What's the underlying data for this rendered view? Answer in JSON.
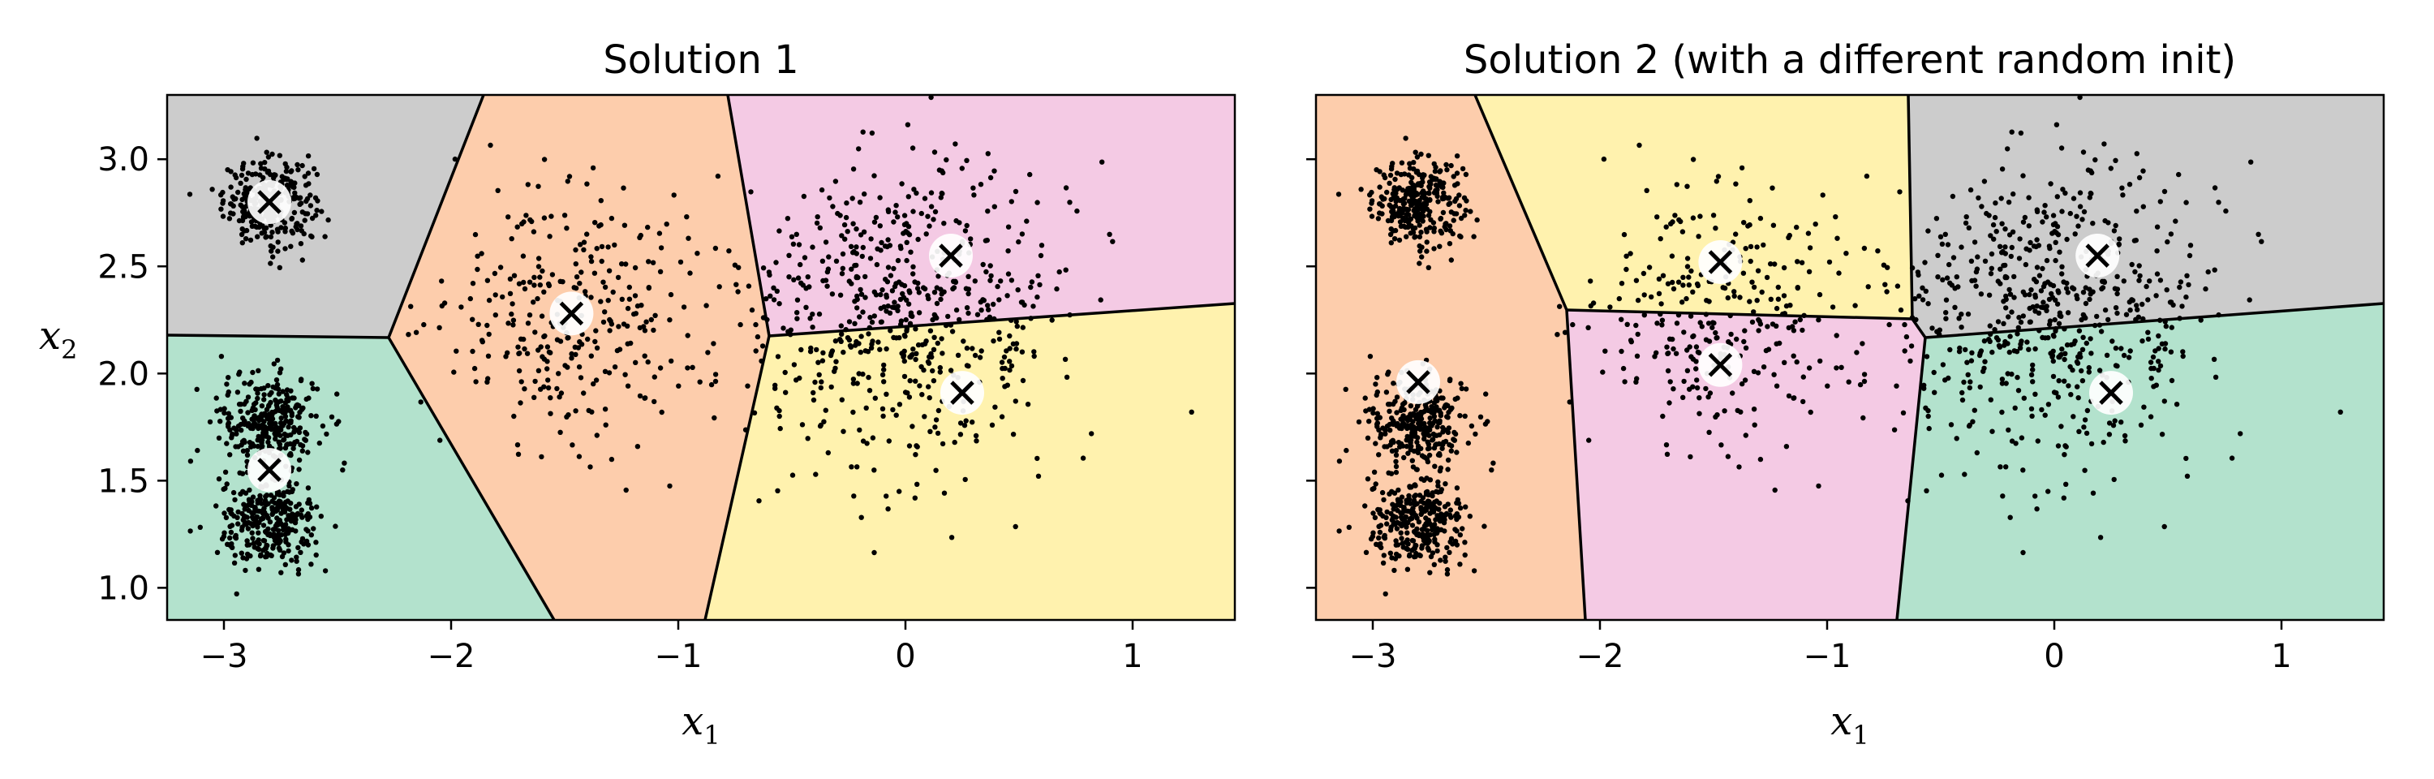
{
  "chart_data": [
    {
      "type": "scatter",
      "title": "Solution 1",
      "xlabel": "x",
      "xlabel_sub": "1",
      "ylabel": "x",
      "ylabel_sub": "2",
      "xlim": [
        -3.25,
        1.45
      ],
      "ylim": [
        0.85,
        3.3
      ],
      "xticks": [
        -3,
        -2,
        -1,
        0,
        1
      ],
      "xtick_labels": [
        "−3",
        "−2",
        "−1",
        "0",
        "1"
      ],
      "yticks": [
        1.0,
        1.5,
        2.0,
        2.5,
        3.0
      ],
      "ytick_labels": [
        "1.0",
        "1.5",
        "2.0",
        "2.5",
        "3.0"
      ],
      "show_ytick_labels": true,
      "grid": false,
      "centroids": [
        {
          "x": -2.8,
          "y": 2.8,
          "color": "#cccccc"
        },
        {
          "x": -2.8,
          "y": 1.55,
          "color": "#b3e2cd"
        },
        {
          "x": -1.47,
          "y": 2.28,
          "color": "#fdcdac"
        },
        {
          "x": 0.2,
          "y": 2.55,
          "color": "#f4cae4"
        },
        {
          "x": 0.25,
          "y": 1.91,
          "color": "#fff2ae"
        }
      ],
      "blobs": [
        {
          "cx": -2.8,
          "cy": 2.8,
          "sd": 0.1,
          "n": 300
        },
        {
          "cx": -2.8,
          "cy": 1.78,
          "sd": 0.11,
          "n": 300
        },
        {
          "cx": -2.8,
          "cy": 1.3,
          "sd": 0.11,
          "n": 300
        },
        {
          "cx": -1.47,
          "cy": 2.28,
          "sd": 0.3,
          "n": 300
        },
        {
          "cx": 0.0,
          "cy": 2.3,
          "sd": 0.35,
          "n": 620
        }
      ]
    },
    {
      "type": "scatter",
      "title": "Solution 2 (with a different random init)",
      "xlabel": "x",
      "xlabel_sub": "1",
      "xlim": [
        -3.25,
        1.45
      ],
      "ylim": [
        0.85,
        3.3
      ],
      "xticks": [
        -3,
        -2,
        -1,
        0,
        1
      ],
      "xtick_labels": [
        "−3",
        "−2",
        "−1",
        "0",
        "1"
      ],
      "yticks": [
        1.0,
        1.5,
        2.0,
        2.5,
        3.0
      ],
      "show_ytick_labels": false,
      "grid": false,
      "centroids": [
        {
          "x": -2.8,
          "y": 1.96,
          "color": "#fdcdac"
        },
        {
          "x": -1.47,
          "y": 2.52,
          "color": "#fff2ae"
        },
        {
          "x": -1.47,
          "y": 2.04,
          "color": "#f4cae4"
        },
        {
          "x": 0.19,
          "y": 2.55,
          "color": "#cccccc"
        },
        {
          "x": 0.25,
          "y": 1.91,
          "color": "#b3e2cd"
        }
      ],
      "blobs": [
        {
          "cx": -2.8,
          "cy": 2.8,
          "sd": 0.1,
          "n": 300
        },
        {
          "cx": -2.8,
          "cy": 1.78,
          "sd": 0.11,
          "n": 300
        },
        {
          "cx": -2.8,
          "cy": 1.3,
          "sd": 0.11,
          "n": 300
        },
        {
          "cx": -1.47,
          "cy": 2.28,
          "sd": 0.3,
          "n": 300
        },
        {
          "cx": 0.0,
          "cy": 2.3,
          "sd": 0.35,
          "n": 620
        }
      ]
    }
  ]
}
